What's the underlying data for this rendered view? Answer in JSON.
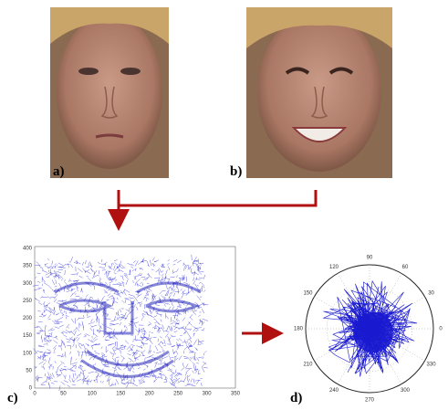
{
  "panels": {
    "a": {
      "label": "a)"
    },
    "b": {
      "label": "b)"
    },
    "c": {
      "label": "c)"
    },
    "d": {
      "label": "d)"
    }
  },
  "plot_c": {
    "xticks": [
      0,
      50,
      100,
      150,
      200,
      250,
      300,
      350
    ],
    "yticks": [
      0,
      50,
      100,
      150,
      200,
      250,
      300,
      350,
      400
    ]
  },
  "plot_d": {
    "angle_labels": [
      0,
      30,
      60,
      90,
      120,
      150,
      180,
      210,
      240,
      270,
      300,
      330
    ]
  }
}
